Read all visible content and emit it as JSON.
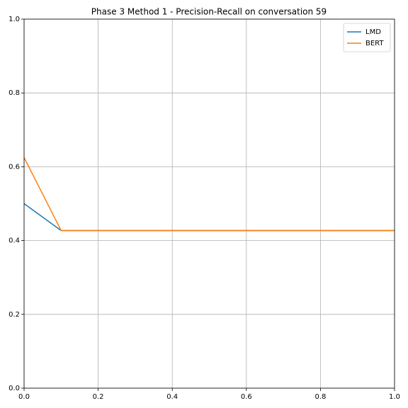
{
  "chart_data": {
    "type": "line",
    "title": "Phase 3 Method 1 - Precision-Recall on conversation 59",
    "x": [
      0,
      0.1,
      1
    ],
    "series": [
      {
        "name": "LMD",
        "color": "#1f77b4",
        "values": [
          0.5,
          0.427,
          0.427
        ]
      },
      {
        "name": "BERT",
        "color": "#ff7f0e",
        "values": [
          0.625,
          0.427,
          0.427
        ]
      }
    ],
    "xlim": [
      0,
      1
    ],
    "ylim": [
      0,
      1
    ],
    "xticks": [
      {
        "value": 0,
        "label": "0.0"
      },
      0.2,
      0.4,
      0.6,
      0.8,
      {
        "value": 1,
        "label": "1.0"
      }
    ],
    "yticks": [
      {
        "value": 0,
        "label": "0.0"
      },
      0.2,
      0.4,
      0.6,
      0.8,
      {
        "value": 1,
        "label": "1.0"
      }
    ],
    "grid": true,
    "legend": "upper-right"
  }
}
